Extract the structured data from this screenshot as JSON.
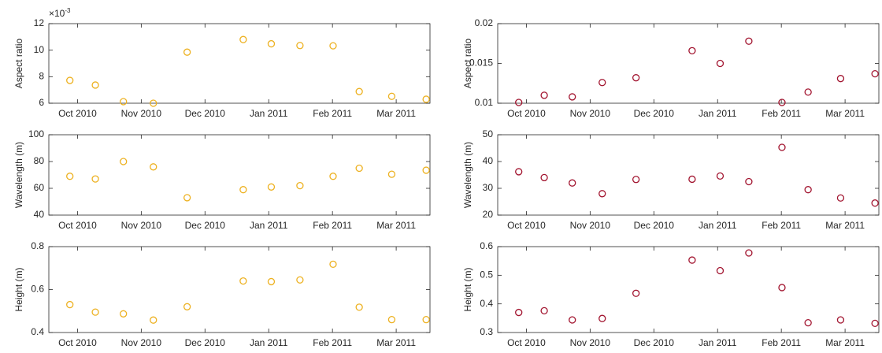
{
  "chart_data": [
    {
      "type": "line",
      "ylabel": "Aspect ratio",
      "y_multiplier": "×10",
      "y_multiplier_exponent": "-3",
      "color": "#EDB120",
      "linestyle": "solid",
      "x": [
        9.88,
        10.28,
        10.72,
        11.19,
        11.72,
        12.6,
        13.04,
        13.49,
        14.01,
        14.42,
        14.93,
        15.47
      ],
      "values": [
        7.72,
        7.37,
        6.12,
        6.0,
        9.85,
        10.8,
        10.48,
        10.35,
        10.33,
        6.88,
        6.52,
        6.3
      ],
      "xlim": [
        9.55,
        15.53
      ],
      "xticks": [
        {
          "value": 10,
          "label": "Oct 2010"
        },
        {
          "value": 11,
          "label": "Nov 2010"
        },
        {
          "value": 12,
          "label": "Dec 2010"
        },
        {
          "value": 13,
          "label": "Jan 2011"
        },
        {
          "value": 14,
          "label": "Feb 2011"
        },
        {
          "value": 15,
          "label": "Mar 2011"
        }
      ],
      "ylim": [
        6,
        12
      ],
      "yticks": [
        6,
        8,
        10,
        12
      ]
    },
    {
      "type": "line",
      "ylabel": "Aspect ratio",
      "color": "#A2142F",
      "linestyle": "solid",
      "x": [
        9.88,
        10.28,
        10.72,
        11.19,
        11.72,
        12.6,
        13.04,
        13.49,
        14.01,
        14.42,
        14.93,
        15.47
      ],
      "values": [
        0.0101,
        0.011,
        0.0108,
        0.0126,
        0.0132,
        0.0166,
        0.015,
        0.0178,
        0.0101,
        0.0114,
        0.0131,
        0.0137
      ],
      "xlim": [
        9.55,
        15.53
      ],
      "xticks": [
        {
          "value": 10,
          "label": "Oct 2010"
        },
        {
          "value": 11,
          "label": "Nov 2010"
        },
        {
          "value": 12,
          "label": "Dec 2010"
        },
        {
          "value": 13,
          "label": "Jan 2011"
        },
        {
          "value": 14,
          "label": "Feb 2011"
        },
        {
          "value": 15,
          "label": "Mar 2011"
        }
      ],
      "ylim": [
        0.01,
        0.02
      ],
      "yticks": [
        0.01,
        0.015,
        0.02
      ]
    },
    {
      "type": "line",
      "ylabel": "Wavelength (m)",
      "color": "#EDB120",
      "linestyle": "dashed",
      "x": [
        9.88,
        10.28,
        10.72,
        11.19,
        11.72,
        12.6,
        13.04,
        13.49,
        14.01,
        14.42,
        14.93,
        15.47
      ],
      "values": [
        69,
        67,
        80,
        76,
        53,
        59,
        61,
        62,
        69,
        75,
        70.5,
        73.5
      ],
      "xlim": [
        9.55,
        15.53
      ],
      "xticks": [
        {
          "value": 10,
          "label": "Oct 2010"
        },
        {
          "value": 11,
          "label": "Nov 2010"
        },
        {
          "value": 12,
          "label": "Dec 2010"
        },
        {
          "value": 13,
          "label": "Jan 2011"
        },
        {
          "value": 14,
          "label": "Feb 2011"
        },
        {
          "value": 15,
          "label": "Mar 2011"
        }
      ],
      "ylim": [
        40,
        100
      ],
      "yticks": [
        40,
        60,
        80,
        100
      ]
    },
    {
      "type": "line",
      "ylabel": "Wavelength (m)",
      "color": "#A2142F",
      "linestyle": "dashed",
      "x": [
        9.88,
        10.28,
        10.72,
        11.19,
        11.72,
        12.6,
        13.04,
        13.49,
        14.01,
        14.42,
        14.93,
        15.47
      ],
      "values": [
        36.2,
        34,
        32,
        28,
        33.3,
        33.4,
        34.6,
        32.5,
        45.3,
        29.5,
        26.4,
        24.5
      ],
      "xlim": [
        9.55,
        15.53
      ],
      "xticks": [
        {
          "value": 10,
          "label": "Oct 2010"
        },
        {
          "value": 11,
          "label": "Nov 2010"
        },
        {
          "value": 12,
          "label": "Dec 2010"
        },
        {
          "value": 13,
          "label": "Jan 2011"
        },
        {
          "value": 14,
          "label": "Feb 2011"
        },
        {
          "value": 15,
          "label": "Mar 2011"
        }
      ],
      "ylim": [
        20,
        50
      ],
      "yticks": [
        20,
        30,
        40,
        50
      ]
    },
    {
      "type": "line",
      "ylabel": "Height (m)",
      "color": "#EDB120",
      "linestyle": "dashdot",
      "x": [
        9.88,
        10.28,
        10.72,
        11.19,
        11.72,
        12.6,
        13.04,
        13.49,
        14.01,
        14.42,
        14.93,
        15.47
      ],
      "values": [
        0.53,
        0.495,
        0.487,
        0.458,
        0.52,
        0.64,
        0.637,
        0.645,
        0.718,
        0.518,
        0.46,
        0.46
      ],
      "xlim": [
        9.55,
        15.53
      ],
      "xticks": [
        {
          "value": 10,
          "label": "Oct 2010"
        },
        {
          "value": 11,
          "label": "Nov 2010"
        },
        {
          "value": 12,
          "label": "Dec 2010"
        },
        {
          "value": 13,
          "label": "Jan 2011"
        },
        {
          "value": 14,
          "label": "Feb 2011"
        },
        {
          "value": 15,
          "label": "Mar 2011"
        }
      ],
      "ylim": [
        0.4,
        0.8
      ],
      "yticks": [
        0.4,
        0.6,
        0.8
      ]
    },
    {
      "type": "line",
      "ylabel": "Height (m)",
      "color": "#A2142F",
      "linestyle": "dashdot",
      "x": [
        9.88,
        10.28,
        10.72,
        11.19,
        11.72,
        12.6,
        13.04,
        13.49,
        14.01,
        14.42,
        14.93,
        15.47
      ],
      "values": [
        0.37,
        0.376,
        0.344,
        0.349,
        0.437,
        0.553,
        0.516,
        0.578,
        0.457,
        0.334,
        0.344,
        0.332
      ],
      "xlim": [
        9.55,
        15.53
      ],
      "xticks": [
        {
          "value": 10,
          "label": "Oct 2010"
        },
        {
          "value": 11,
          "label": "Nov 2010"
        },
        {
          "value": 12,
          "label": "Dec 2010"
        },
        {
          "value": 13,
          "label": "Jan 2011"
        },
        {
          "value": 14,
          "label": "Feb 2011"
        },
        {
          "value": 15,
          "label": "Mar 2011"
        }
      ],
      "ylim": [
        0.3,
        0.6
      ],
      "yticks": [
        0.3,
        0.4,
        0.5,
        0.6
      ]
    }
  ]
}
